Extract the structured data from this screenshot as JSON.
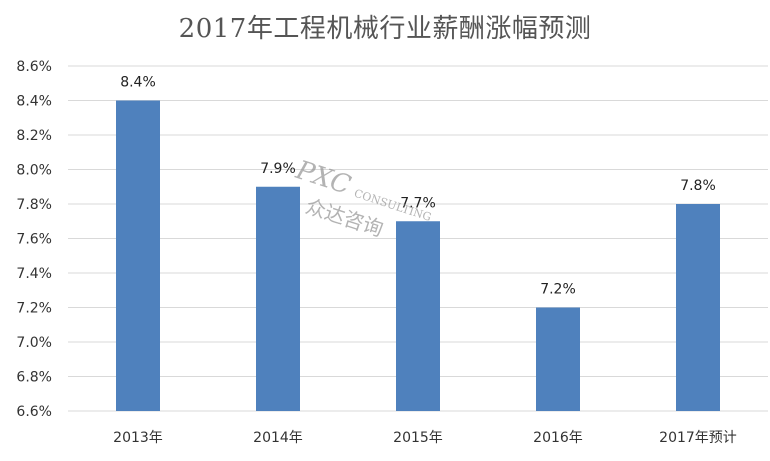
{
  "chart_data": {
    "type": "bar",
    "title": "2017年工程机械行业薪酬涨幅预测",
    "categories": [
      "2013年",
      "2014年",
      "2015年",
      "2016年",
      "2017年预计"
    ],
    "values": [
      8.4,
      7.9,
      7.7,
      7.2,
      7.8
    ],
    "data_labels": [
      "8.4%",
      "7.9%",
      "7.7%",
      "7.2%",
      "7.8%"
    ],
    "ylim": [
      6.6,
      8.6
    ],
    "y_ticks": [
      6.6,
      6.8,
      7.0,
      7.2,
      7.4,
      7.6,
      7.8,
      8.0,
      8.2,
      8.4,
      8.6
    ],
    "y_tick_labels": [
      "6.6%",
      "6.8%",
      "7.0%",
      "7.2%",
      "7.4%",
      "7.6%",
      "7.8%",
      "8.0%",
      "8.2%",
      "8.4%",
      "8.6%"
    ],
    "xlabel": "",
    "ylabel": "",
    "grid": true,
    "bar_color": "#4f81bd",
    "grid_color": "#d9d9d9"
  },
  "watermark": {
    "line1": "PXC",
    "line2": "CONSULTING",
    "line3": "众达咨询"
  }
}
